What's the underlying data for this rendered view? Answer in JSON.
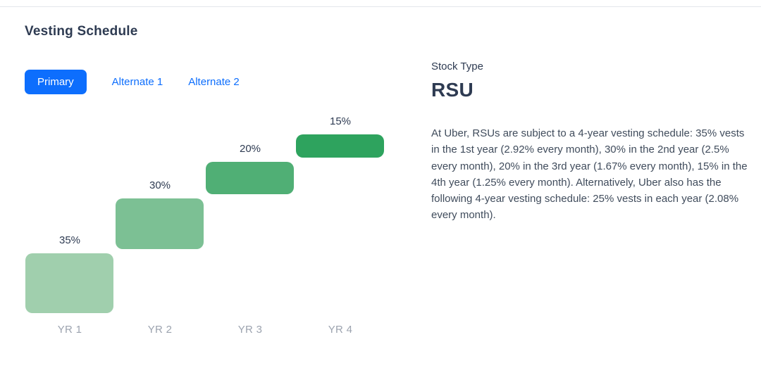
{
  "header": {
    "title": "Vesting Schedule"
  },
  "tabs": [
    {
      "label": "Primary",
      "active": true
    },
    {
      "label": "Alternate 1",
      "active": false
    },
    {
      "label": "Alternate 2",
      "active": false
    }
  ],
  "chart_data": {
    "type": "bar",
    "variant": "staircase-waterfall",
    "title": "Vesting Schedule",
    "categories": [
      "YR 1",
      "YR 2",
      "YR 3",
      "YR 4"
    ],
    "values": [
      35,
      30,
      20,
      15
    ],
    "value_labels": [
      "35%",
      "30%",
      "20%",
      "15%"
    ],
    "cumulative_start": [
      0,
      35,
      65,
      85
    ],
    "bar_colors": [
      "#a0cfad",
      "#7cc094",
      "#50af75",
      "#2ea35e"
    ],
    "ylim": [
      0,
      100
    ],
    "grid": false,
    "legend": "none",
    "xlabel": "",
    "ylabel": ""
  },
  "details": {
    "stock_type_label": "Stock Type",
    "stock_type_value": "RSU",
    "description": "At Uber, RSUs are subject to a 4-year vesting schedule: 35% vests in the 1st year (2.92% every month), 30% in the 2nd year (2.5% every month), 20% in the 3rd year (1.67% every month), 15% in the 4th year (1.25% every month). Alternatively, Uber also has the following 4-year vesting schedule: 25% vests in each year (2.08% every month)."
  },
  "colors": {
    "accent_blue": "#0d6efd",
    "heading": "#2e3b52",
    "body_text": "#404c5c",
    "axis_label": "#9ca3af",
    "divider": "#e4e7eb"
  }
}
